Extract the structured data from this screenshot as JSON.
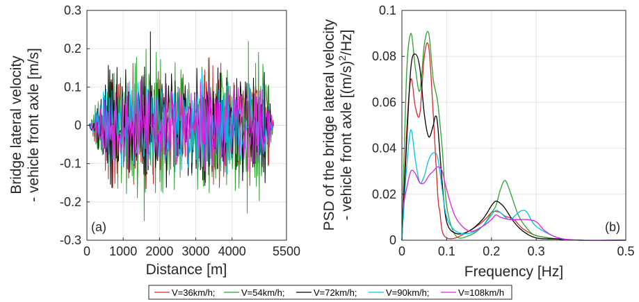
{
  "chart_data": [
    {
      "type": "line",
      "panel_label": "(a)",
      "xlabel": "Distance [m]",
      "ylabel_line1": "Bridge lateral velocity",
      "ylabel_line2": "- vehicle front axle [m/s]",
      "xlim": [
        0,
        5500
      ],
      "ylim": [
        -0.3,
        0.3
      ],
      "xticks": [
        "0",
        "1000",
        "2000",
        "3000",
        "4000",
        "5500"
      ],
      "xtick_values": [
        0,
        1000,
        2000,
        3000,
        4000,
        5500
      ],
      "yticks": [
        "0.3",
        "0.2",
        "0.1",
        "0",
        "-0.1",
        "-0.2",
        "-0.3"
      ],
      "ytick_values": [
        0.3,
        0.2,
        0.1,
        0,
        -0.1,
        -0.2,
        -0.3
      ],
      "grid": true,
      "signal": {
        "x_start": 50,
        "x_end": 5150,
        "ramp_end": 600,
        "fade_start": 4900
      },
      "series": [
        {
          "name": "V=36km/h;",
          "color": "#d62728",
          "amp": 0.11,
          "seed": 11
        },
        {
          "name": "V=54km/h;",
          "color": "#2ca02c",
          "amp": 0.12,
          "seed": 23
        },
        {
          "name": "V=72km/h;",
          "color": "#000000",
          "amp": 0.1,
          "seed": 37
        },
        {
          "name": "V=90km/h;",
          "color": "#00bfef",
          "amp": 0.09,
          "seed": 41
        },
        {
          "name": "V=108km/h",
          "color": "#e020e0",
          "amp": 0.08,
          "seed": 53
        }
      ],
      "peaks": {
        "max": [
          1750,
          0.245
        ],
        "min": [
          1580,
          -0.25
        ],
        "green_high": [
          4450,
          0.22
        ],
        "green_low": [
          4420,
          -0.23
        ]
      }
    },
    {
      "type": "line",
      "panel_label": "(b)",
      "xlabel": "Frequency [Hz]",
      "ylabel_line1": "PSD of the bridge lateral velocity",
      "ylabel_line2_pre": "- vehicle front axle [(m/s)",
      "ylabel_line2_sup": "2",
      "ylabel_line2_post": "/Hz]",
      "xlim": [
        0,
        0.5
      ],
      "ylim": [
        0,
        0.1
      ],
      "xticks": [
        "0",
        "0.1",
        "0.2",
        "0.3",
        "0.5"
      ],
      "xtick_values": [
        0,
        0.1,
        0.2,
        0.3,
        0.5
      ],
      "yticks": [
        "0.1",
        "0.08",
        "0.06",
        "0.04",
        "0.02",
        "0"
      ],
      "ytick_values": [
        0.1,
        0.08,
        0.06,
        0.04,
        0.02,
        0
      ],
      "grid": true,
      "series": [
        {
          "name": "V=36km/h;",
          "color": "#d62728",
          "x": [
            0,
            0.01,
            0.02,
            0.03,
            0.04,
            0.05,
            0.06,
            0.07,
            0.08,
            0.085,
            0.09,
            0.1,
            0.12,
            0.15,
            0.18,
            0.2,
            0.21,
            0.22,
            0.23,
            0.25,
            0.27,
            0.3,
            0.35,
            0.4,
            0.5
          ],
          "y": [
            0,
            0.045,
            0.07,
            0.058,
            0.055,
            0.08,
            0.084,
            0.055,
            0.02,
            0.012,
            0.004,
            0.001,
            0.001,
            0.004,
            0.008,
            0.012,
            0.0125,
            0.012,
            0.0105,
            0.009,
            0.005,
            0.002,
            0.0005,
            0,
            0
          ]
        },
        {
          "name": "V=54km/h;",
          "color": "#2ca02c",
          "x": [
            0,
            0.01,
            0.02,
            0.03,
            0.04,
            0.05,
            0.06,
            0.07,
            0.08,
            0.09,
            0.1,
            0.12,
            0.15,
            0.18,
            0.2,
            0.21,
            0.22,
            0.23,
            0.24,
            0.26,
            0.28,
            0.3,
            0.35,
            0.4,
            0.5
          ],
          "y": [
            0,
            0.07,
            0.09,
            0.075,
            0.065,
            0.085,
            0.09,
            0.07,
            0.06,
            0.04,
            0.015,
            0.002,
            0.002,
            0.006,
            0.012,
            0.015,
            0.022,
            0.026,
            0.022,
            0.011,
            0.005,
            0.002,
            0.0005,
            0,
            0
          ]
        },
        {
          "name": "V=72km/h;",
          "color": "#000000",
          "x": [
            0,
            0.01,
            0.02,
            0.03,
            0.04,
            0.05,
            0.06,
            0.07,
            0.075,
            0.08,
            0.09,
            0.1,
            0.12,
            0.15,
            0.18,
            0.2,
            0.21,
            0.22,
            0.23,
            0.25,
            0.27,
            0.3,
            0.35,
            0.4,
            0.5
          ],
          "y": [
            0,
            0.04,
            0.075,
            0.081,
            0.075,
            0.055,
            0.045,
            0.05,
            0.054,
            0.05,
            0.025,
            0.008,
            0.003,
            0.004,
            0.009,
            0.015,
            0.017,
            0.016,
            0.014,
            0.008,
            0.004,
            0.001,
            0.0005,
            0,
            0
          ]
        },
        {
          "name": "V=90km/h;",
          "color": "#00bfef",
          "x": [
            0,
            0.01,
            0.02,
            0.03,
            0.04,
            0.05,
            0.06,
            0.07,
            0.08,
            0.09,
            0.1,
            0.12,
            0.15,
            0.18,
            0.2,
            0.21,
            0.22,
            0.24,
            0.26,
            0.27,
            0.28,
            0.3,
            0.35,
            0.4,
            0.5
          ],
          "y": [
            0,
            0.03,
            0.048,
            0.035,
            0.025,
            0.028,
            0.035,
            0.038,
            0.036,
            0.022,
            0.01,
            0.004,
            0.003,
            0.006,
            0.011,
            0.013,
            0.012,
            0.009,
            0.012,
            0.013,
            0.012,
            0.006,
            0.001,
            0,
            0
          ]
        },
        {
          "name": "V=108km/h",
          "color": "#e020e0",
          "x": [
            0,
            0.01,
            0.02,
            0.03,
            0.04,
            0.05,
            0.06,
            0.07,
            0.08,
            0.09,
            0.1,
            0.12,
            0.15,
            0.18,
            0.2,
            0.21,
            0.22,
            0.24,
            0.26,
            0.28,
            0.3,
            0.32,
            0.35,
            0.4,
            0.5
          ],
          "y": [
            0.012,
            0.022,
            0.03,
            0.029,
            0.025,
            0.025,
            0.028,
            0.03,
            0.032,
            0.03,
            0.022,
            0.01,
            0.004,
            0.006,
            0.009,
            0.011,
            0.01,
            0.009,
            0.009,
            0.009,
            0.008,
            0.004,
            0.001,
            0,
            0
          ]
        }
      ]
    }
  ],
  "legend": {
    "entries": [
      {
        "label": "V=36km/h;",
        "color": "#d62728"
      },
      {
        "label": "V=54km/h;",
        "color": "#2ca02c"
      },
      {
        "label": "V=72km/h;",
        "color": "#000000"
      },
      {
        "label": "V=90km/h;",
        "color": "#00bfef"
      },
      {
        "label": "V=108km/h",
        "color": "#e020e0"
      }
    ],
    "placement": "bottom-center"
  }
}
